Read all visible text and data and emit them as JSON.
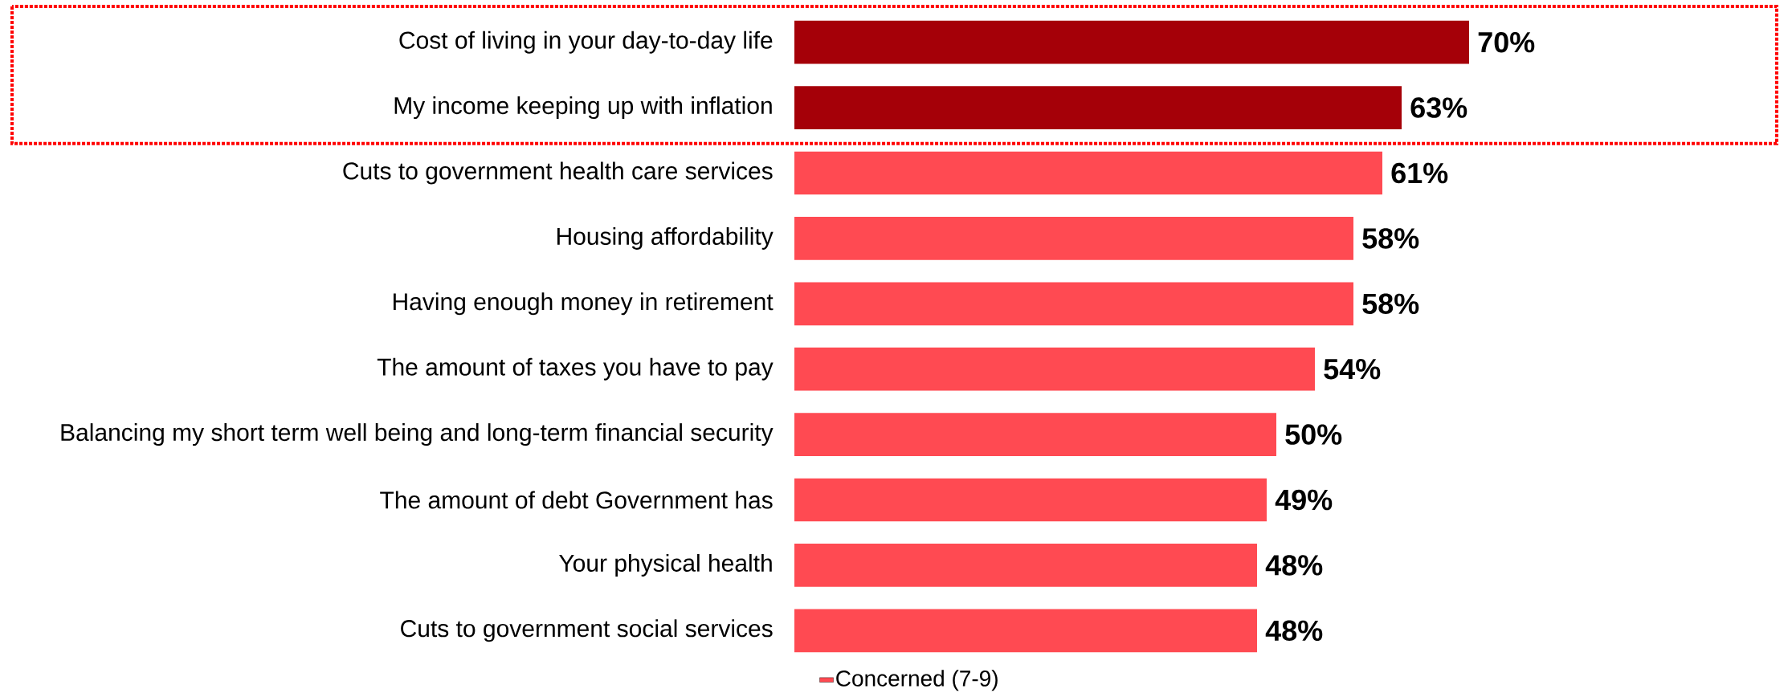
{
  "chart_data": {
    "type": "bar",
    "orientation": "horizontal",
    "categories": [
      "Cost of living in your day-to-day life",
      "My income keeping up with inflation",
      "Cuts to government health care services",
      "Housing affordability",
      "Having enough money in retirement",
      "The amount of taxes you have to pay",
      "Balancing my short term well being and long-term financial security",
      "The amount of debt Government has",
      "Your physical health",
      "Cuts to government social services"
    ],
    "series": [
      {
        "name": "Concerned (7-9)",
        "color": "#ff4a52",
        "colors": [
          "#a50008",
          "#a50008",
          "#ff4a52",
          "#ff4a52",
          "#ff4a52",
          "#ff4a52",
          "#ff4a52",
          "#ff4a52",
          "#ff4a52",
          "#ff4a52"
        ],
        "values": [
          70,
          63,
          61,
          58,
          58,
          54,
          50,
          49,
          48,
          48
        ],
        "value_labels": [
          "70%",
          "63%",
          "61%",
          "58%",
          "58%",
          "54%",
          "50%",
          "49%",
          "48%",
          "48%"
        ]
      }
    ],
    "legend": "bottom"
  }
}
